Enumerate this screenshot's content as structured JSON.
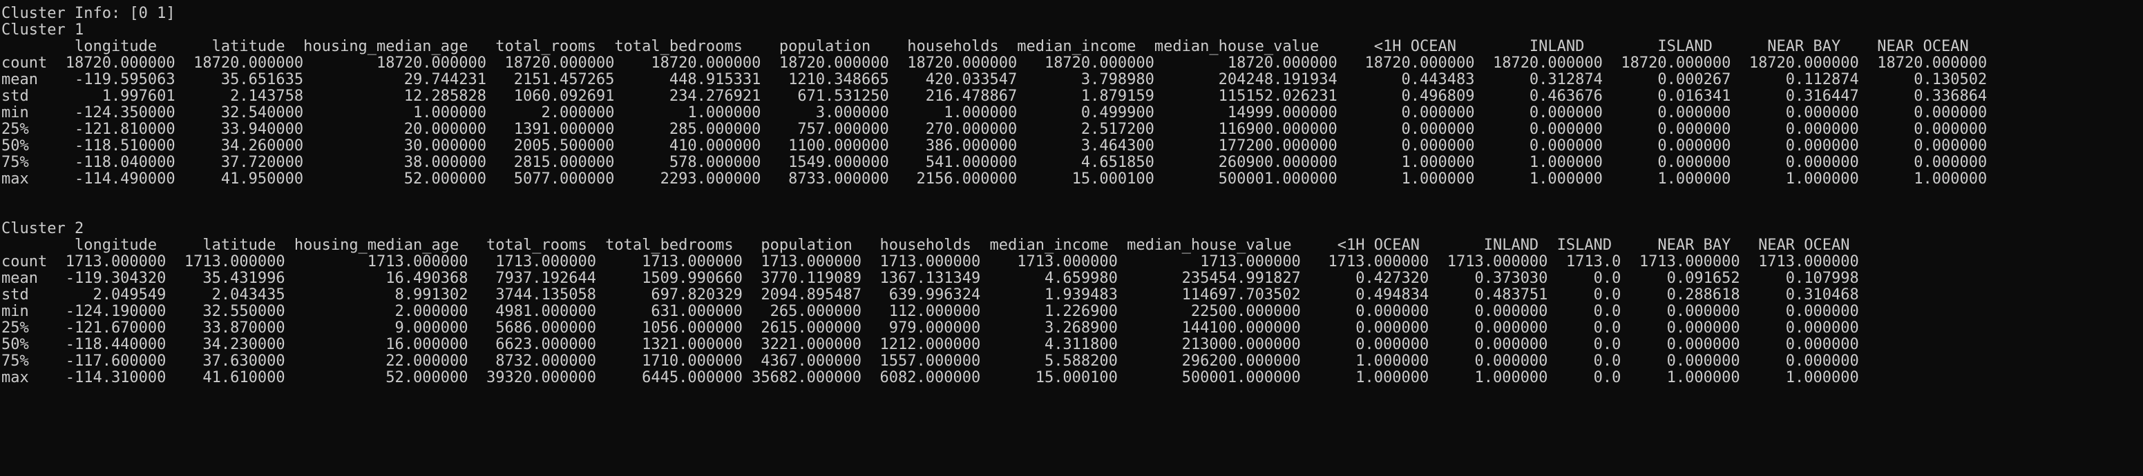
{
  "terminal": {
    "lines": [
      "Cluster Info: [0 1]",
      "Cluster 1",
      "        longitude      latitude  housing_median_age   total_rooms  total_bedrooms    population    households  median_income  median_house_value      <1H OCEAN        INLAND        ISLAND      NEAR BAY    NEAR OCEAN",
      "count  18720.000000  18720.000000        18720.000000  18720.000000    18720.000000  18720.000000  18720.000000   18720.000000        18720.000000   18720.000000  18720.000000  18720.000000  18720.000000  18720.000000",
      "mean    -119.595063     35.651635           29.744231   2151.457265      448.915331   1210.348665    420.033547       3.798980       204248.191934       0.443483      0.312874      0.000267      0.112874      0.130502",
      "std        1.997601      2.143758           12.285828   1060.092691      234.276921    671.531250    216.478867       1.879159       115152.026231       0.496809      0.463676      0.016341      0.316447      0.336864",
      "min     -124.350000     32.540000            1.000000      2.000000        1.000000      3.000000      1.000000       0.499900        14999.000000       0.000000      0.000000      0.000000      0.000000      0.000000",
      "25%     -121.810000     33.940000           20.000000   1391.000000      285.000000    757.000000    270.000000       2.517200       116900.000000       0.000000      0.000000      0.000000      0.000000      0.000000",
      "50%     -118.510000     34.260000           30.000000   2005.500000      410.000000   1100.000000    386.000000       3.464300       177200.000000       0.000000      0.000000      0.000000      0.000000      0.000000",
      "75%     -118.040000     37.720000           38.000000   2815.000000      578.000000   1549.000000    541.000000       4.651850       260900.000000       1.000000      1.000000      0.000000      0.000000      0.000000",
      "max     -114.490000     41.950000           52.000000   5077.000000     2293.000000   8733.000000   2156.000000      15.000100       500001.000000       1.000000      1.000000      1.000000      1.000000      1.000000",
      "",
      "",
      "Cluster 2",
      "        longitude     latitude  housing_median_age   total_rooms  total_bedrooms   population   households  median_income  median_house_value     <1H OCEAN       INLAND  ISLAND     NEAR BAY   NEAR OCEAN",
      "count  1713.000000  1713.000000         1713.000000   1713.000000     1713.000000  1713.000000  1713.000000    1713.000000         1713.000000   1713.000000  1713.000000  1713.0  1713.000000  1713.000000",
      "mean   -119.304320    35.431996           16.490368   7937.192644     1509.990660  3770.119089  1367.131349       4.659980       235454.991827      0.427320     0.373030     0.0     0.091652     0.107998",
      "std       2.049549     2.043435            8.991302   3744.135058      697.820329  2094.895487   639.996324       1.939483       114697.703502      0.494834     0.483751     0.0     0.288618     0.310468",
      "min    -124.190000    32.550000            2.000000   4981.000000      631.000000   265.000000   112.000000       1.226900        22500.000000      0.000000     0.000000     0.0     0.000000     0.000000",
      "25%    -121.670000    33.870000            9.000000   5686.000000     1056.000000  2615.000000   979.000000       3.268900       144100.000000      0.000000     0.000000     0.0     0.000000     0.000000",
      "50%    -118.440000    34.230000           16.000000   6623.000000     1321.000000  3221.000000  1212.000000       4.311800       213000.000000      0.000000     0.000000     0.0     0.000000     0.000000",
      "75%    -117.600000    37.630000           22.000000   8732.000000     1710.000000  4367.000000  1557.000000       5.588200       296200.000000      1.000000     0.000000     0.0     0.000000     0.000000",
      "max    -114.310000    41.610000           52.000000  39320.000000     6445.000000 35682.000000  6082.000000      15.000100       500001.000000      1.000000     1.000000     0.0     1.000000     1.000000"
    ]
  }
}
